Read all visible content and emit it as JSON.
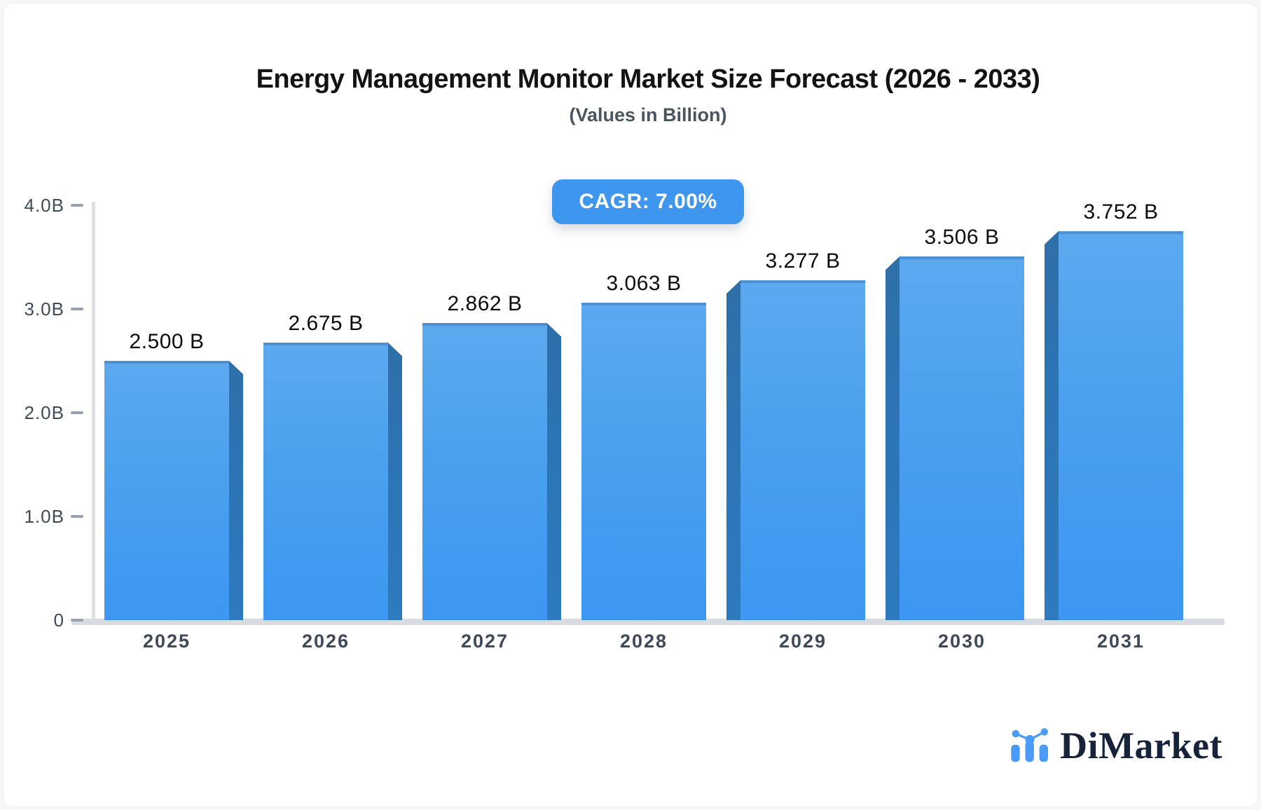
{
  "header": {
    "title": "Energy Management Monitor Market Size Forecast (2026 - 2033)",
    "subtitle": "(Values in Billion)",
    "cagr_badge": "CAGR: 7.00%"
  },
  "y_axis": {
    "ticks": [
      {
        "label": "4.0B",
        "value": 4.0
      },
      {
        "label": "3.0B",
        "value": 3.0
      },
      {
        "label": "2.0B",
        "value": 2.0
      },
      {
        "label": "1.0B",
        "value": 1.0
      },
      {
        "label": "0",
        "value": 0
      }
    ],
    "max": 4.0
  },
  "chart_data": {
    "type": "bar",
    "title": "Energy Management Monitor Market Size Forecast (2026 - 2033)",
    "subtitle": "(Values in Billion)",
    "categories": [
      "2025",
      "2026",
      "2027",
      "2028",
      "2029",
      "2030",
      "2031"
    ],
    "values": [
      2.5,
      2.675,
      2.862,
      3.063,
      3.277,
      3.506,
      3.752
    ],
    "value_labels": [
      "2.500 B",
      "2.675 B",
      "2.862 B",
      "3.063 B",
      "3.277 B",
      "3.506 B",
      "3.752 B"
    ],
    "cagr_label": "CAGR: 7.00%",
    "ylim": [
      0,
      4.0
    ],
    "ylabel": "Values in Billion",
    "xlabel": "",
    "grid": false,
    "legend": null
  },
  "colors": {
    "bar_face_top": "#5CA9EF",
    "bar_face_bottom": "#3D97F2",
    "bar_top_edge": "#4C90D2",
    "bar_side": "#2C74B4",
    "badge_bg": "#3F96EE",
    "badge_text": "#FFFFFF",
    "axis_line": "#DCDFE4",
    "tick_dash": "#99A2AF",
    "value_text": "#0D0D0D",
    "axis_text": "#3F4A5A",
    "title_text": "#131313",
    "subtitle_text": "#4A5560",
    "logo_text": "#16233B",
    "logo_icon": "#4A9BF7"
  },
  "logo": {
    "name": "DiMarket"
  }
}
